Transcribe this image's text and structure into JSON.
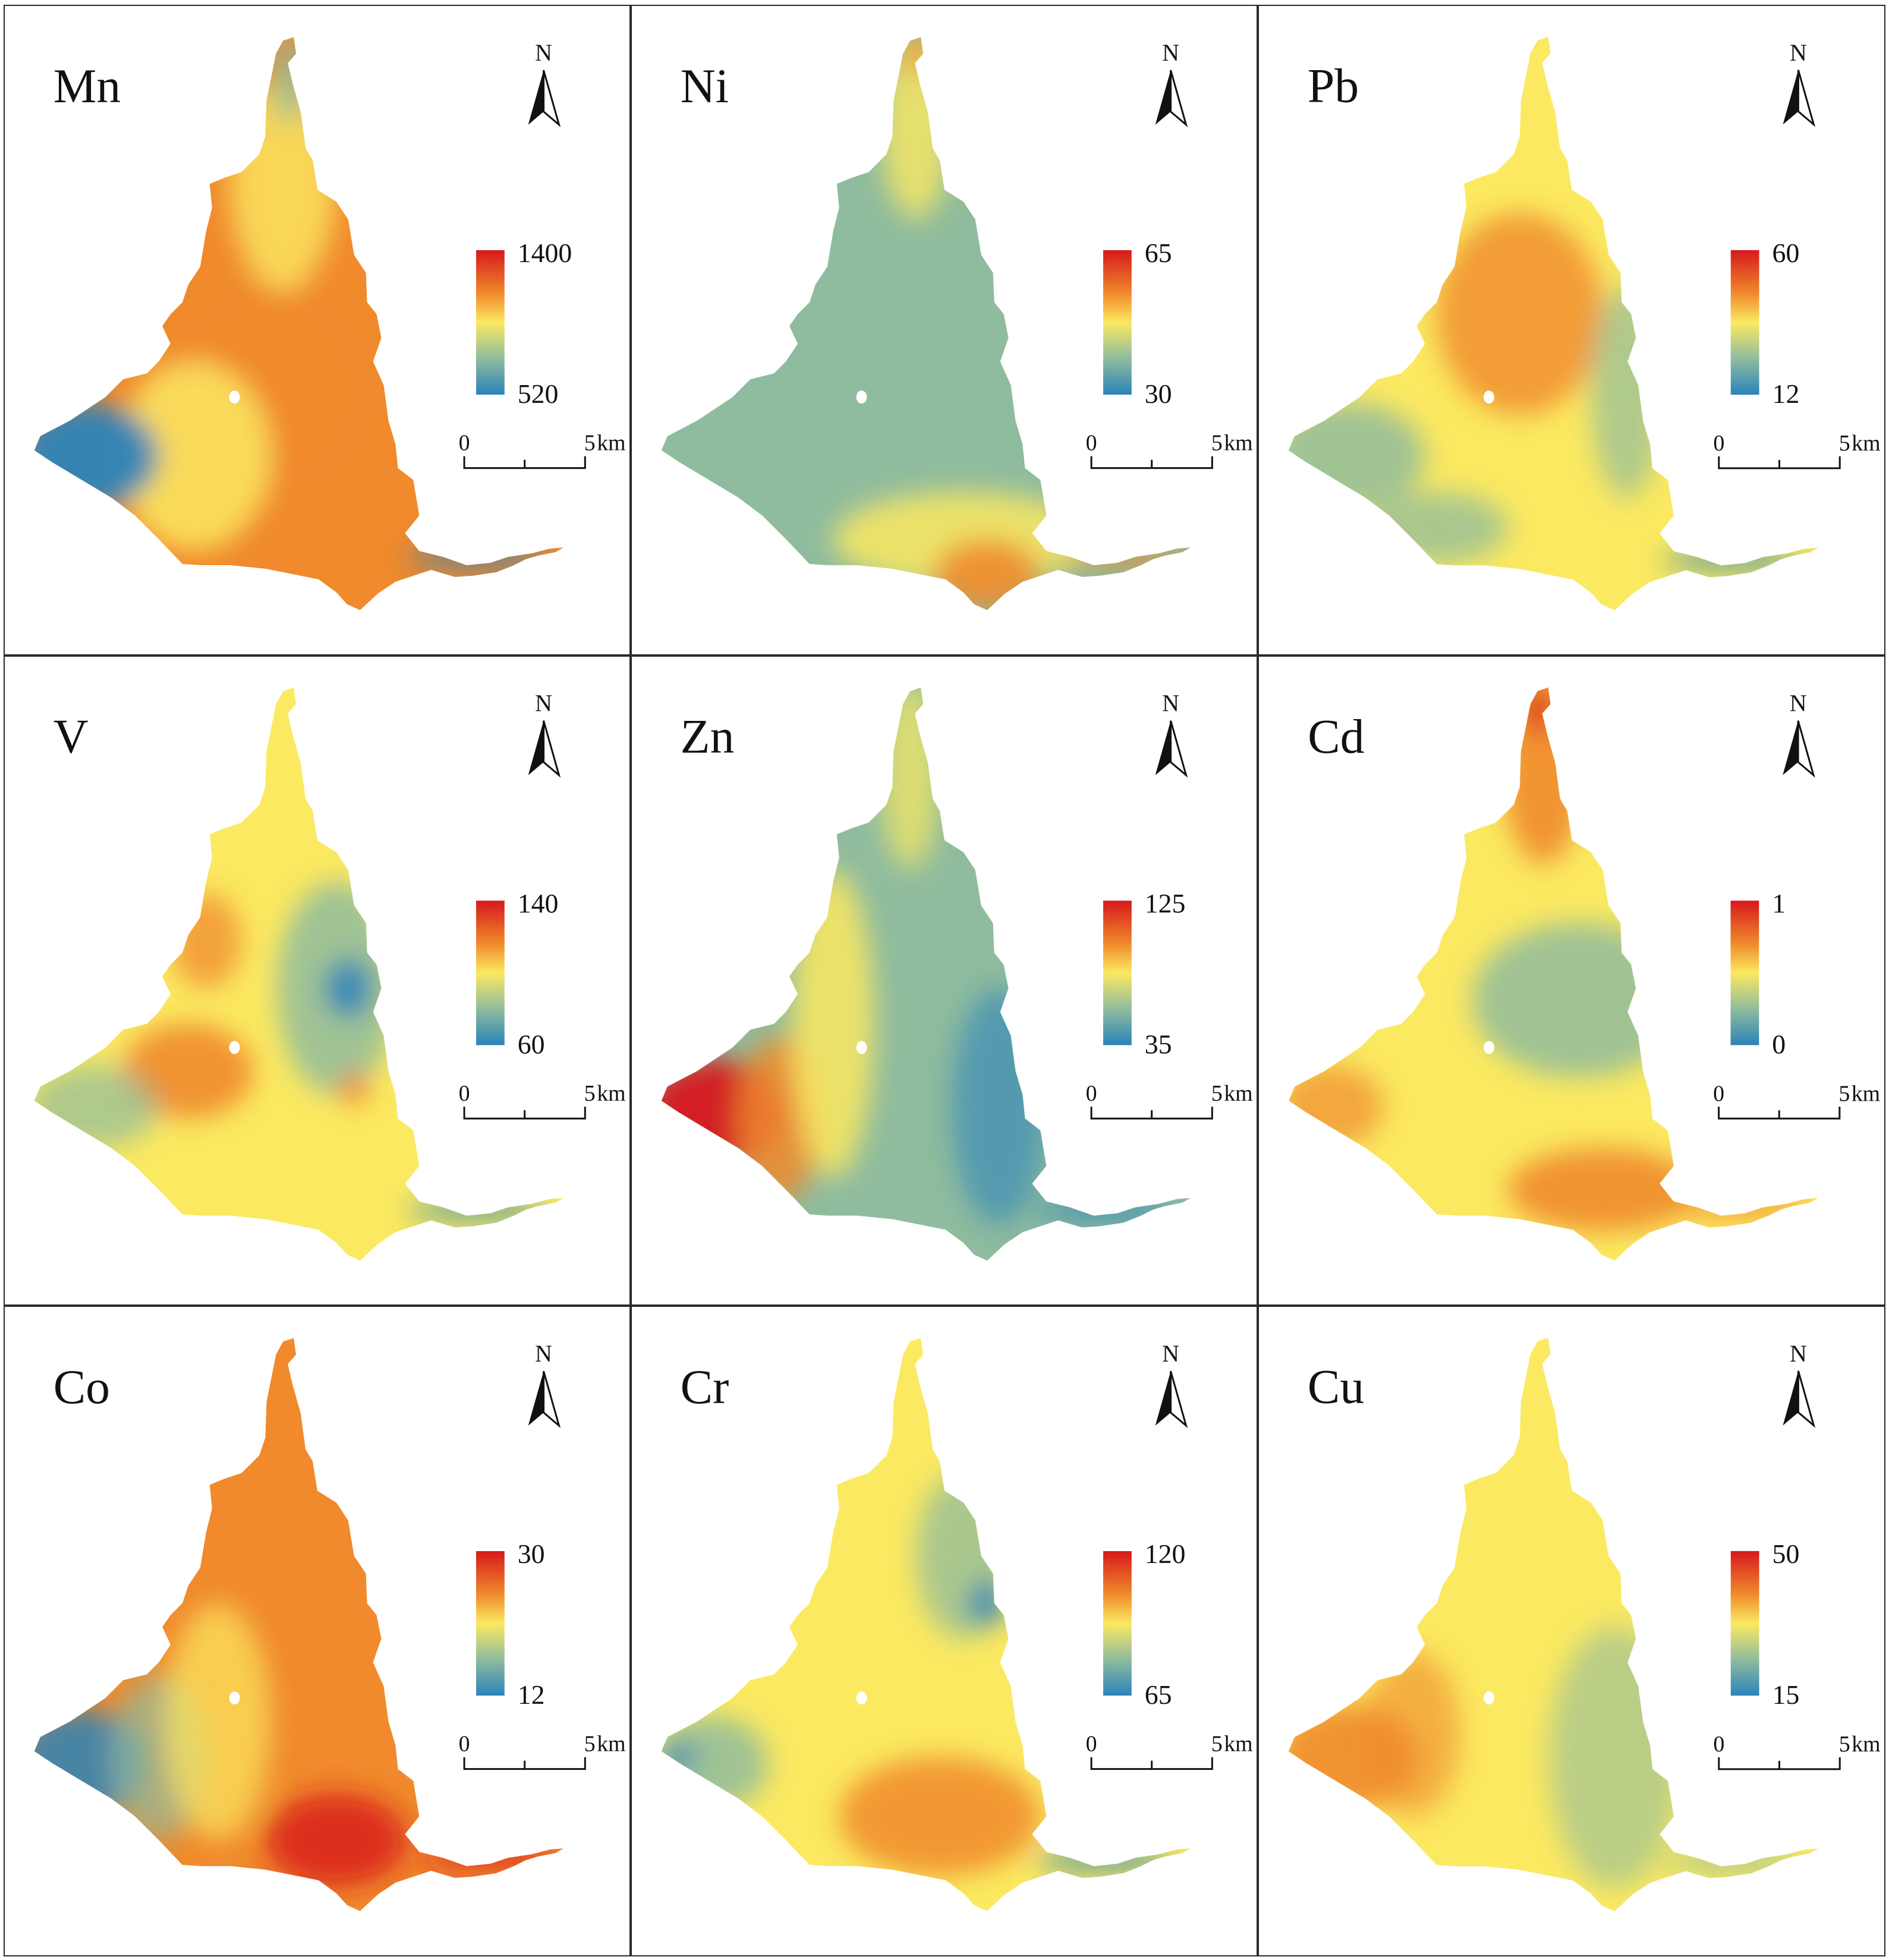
{
  "scale_bar": {
    "start_label": "0",
    "end_label": "5",
    "unit": "km"
  },
  "north_label": "N",
  "colors": {
    "high": "#d7191c",
    "upper": "#f08a2c",
    "mid": "#fbe961",
    "lower": "#8fbc9e",
    "low": "#2b83ba",
    "outline": "#2a2a2a"
  },
  "panels": [
    {
      "element": "Mn",
      "legend": {
        "max": "1400",
        "min": "520"
      },
      "pattern": "center-high"
    },
    {
      "element": "Ni",
      "legend": {
        "max": "65",
        "min": "30"
      },
      "pattern": "south-high"
    },
    {
      "element": "Pb",
      "legend": {
        "max": "60",
        "min": "12"
      },
      "pattern": "north-mid-high"
    },
    {
      "element": "V",
      "legend": {
        "max": "140",
        "min": "60"
      },
      "pattern": "west-high"
    },
    {
      "element": "Zn",
      "legend": {
        "max": "125",
        "min": "35"
      },
      "pattern": "southwest-high"
    },
    {
      "element": "Cd",
      "legend": {
        "max": "1",
        "min": "0"
      },
      "pattern": "north-south-high"
    },
    {
      "element": "Co",
      "legend": {
        "max": "30",
        "min": "12"
      },
      "pattern": "southeast-high"
    },
    {
      "element": "Cr",
      "legend": {
        "max": "120",
        "min": "65"
      },
      "pattern": "south-center-high"
    },
    {
      "element": "Cu",
      "legend": {
        "max": "50",
        "min": "15"
      },
      "pattern": "west-mid-high"
    }
  ]
}
